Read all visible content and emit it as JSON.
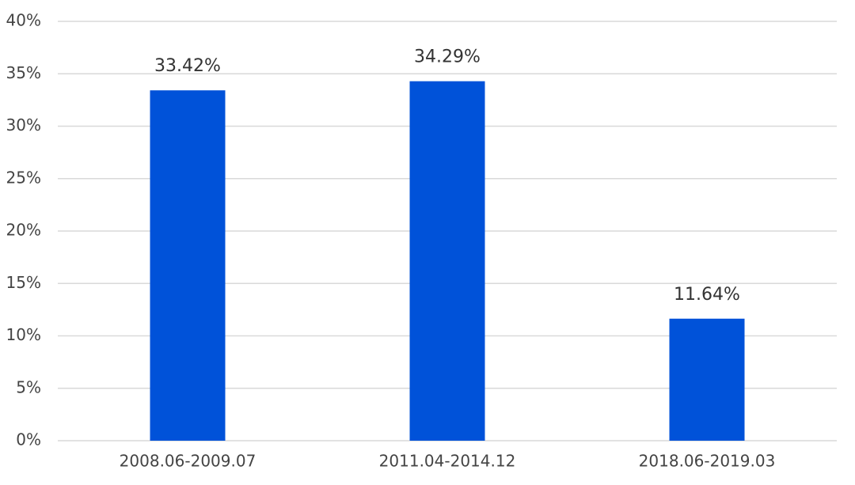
{
  "chart_data": {
    "type": "bar",
    "categories": [
      "2008.06-2009.07",
      "2011.04-2014.12",
      "2018.06-2019.03"
    ],
    "values": [
      33.42,
      34.29,
      11.64
    ],
    "value_labels": [
      "33.42%",
      "34.29%",
      "11.64%"
    ],
    "color": "#0052d9",
    "ylim": [
      0,
      40
    ],
    "yticks": [
      {
        "value": 0,
        "label": "0%"
      },
      {
        "value": 5,
        "label": "5%"
      },
      {
        "value": 10,
        "label": "10%"
      },
      {
        "value": 15,
        "label": "15%"
      },
      {
        "value": 20,
        "label": "20%"
      },
      {
        "value": 25,
        "label": "25%"
      },
      {
        "value": 30,
        "label": "30%"
      },
      {
        "value": 35,
        "label": "35%"
      },
      {
        "value": 40,
        "label": "40%"
      }
    ],
    "grid": true
  }
}
